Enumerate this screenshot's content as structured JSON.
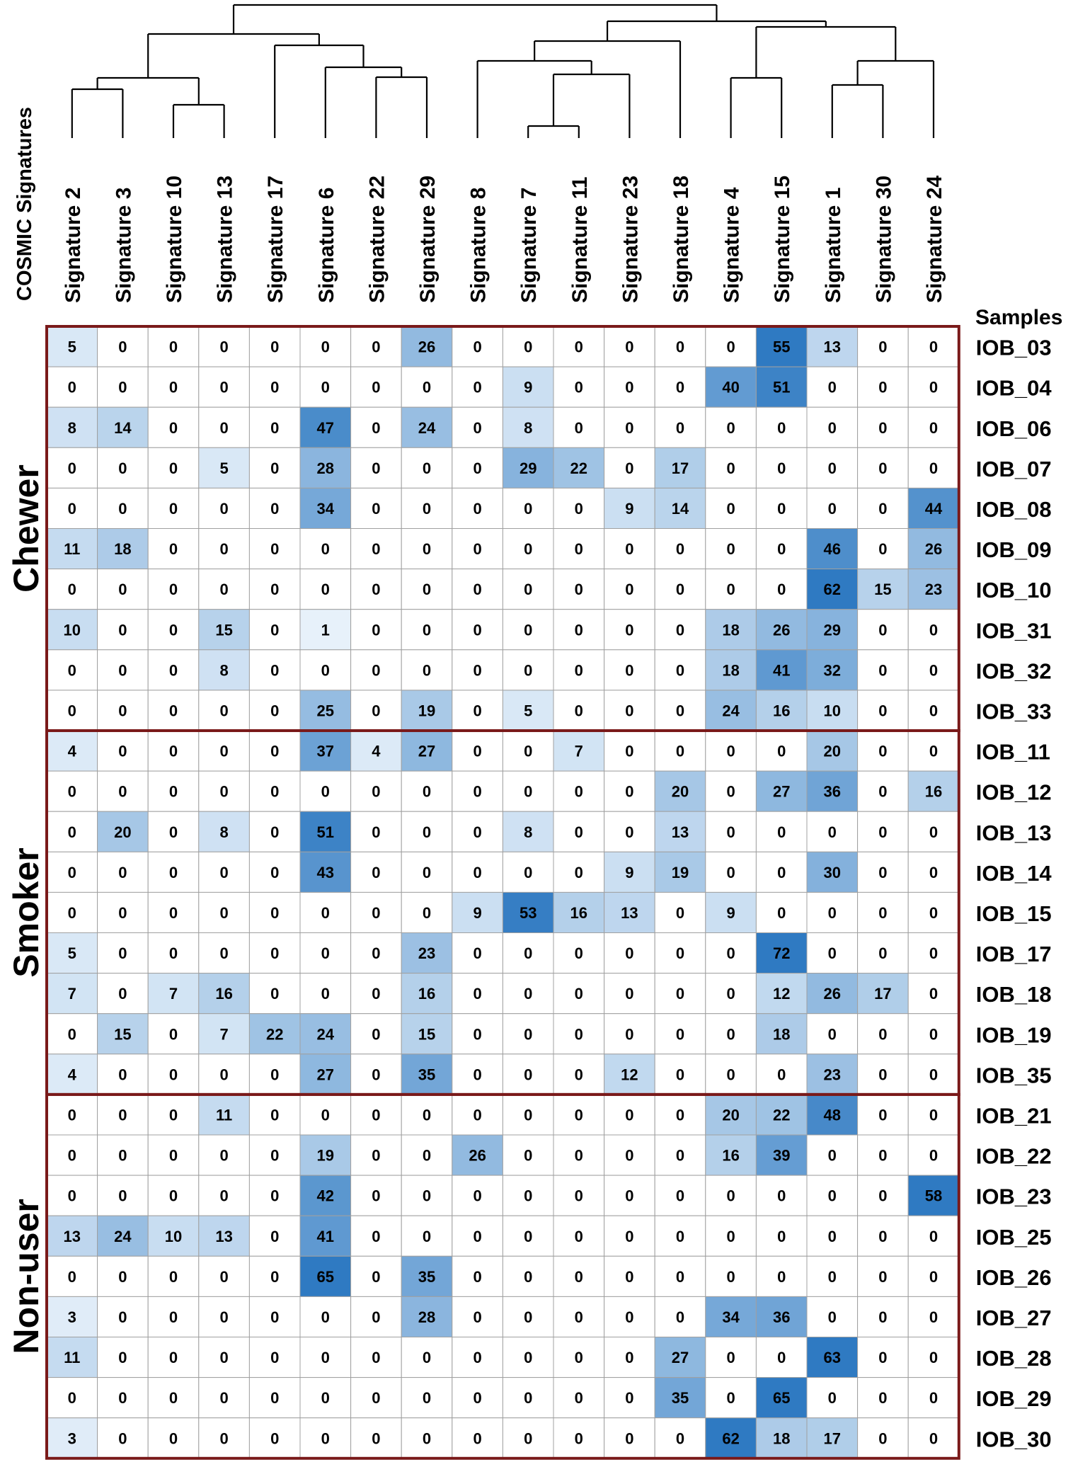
{
  "chart_data": {
    "type": "heatmap",
    "x_axis_title": "COSMIC Signatures",
    "samples_header": "Samples",
    "columns": [
      "Signature 2",
      "Signature 3",
      "Signature 10",
      "Signature 13",
      "Signature 17",
      "Signature 6",
      "Signature 22",
      "Signature 29",
      "Signature 8",
      "Signature 7",
      "Signature 11",
      "Signature 23",
      "Signature 18",
      "Signature 4",
      "Signature 15",
      "Signature 1",
      "Signature 30",
      "Signature 24"
    ],
    "groups": [
      {
        "name": "Chewer",
        "rows": [
          {
            "sample": "IOB_03",
            "values": [
              5,
              0,
              0,
              0,
              0,
              0,
              0,
              26,
              0,
              0,
              0,
              0,
              0,
              0,
              55,
              13,
              0,
              0
            ]
          },
          {
            "sample": "IOB_04",
            "values": [
              0,
              0,
              0,
              0,
              0,
              0,
              0,
              0,
              0,
              9,
              0,
              0,
              0,
              40,
              51,
              0,
              0,
              0
            ]
          },
          {
            "sample": "IOB_06",
            "values": [
              8,
              14,
              0,
              0,
              0,
              47,
              0,
              24,
              0,
              8,
              0,
              0,
              0,
              0,
              0,
              0,
              0,
              0
            ]
          },
          {
            "sample": "IOB_07",
            "values": [
              0,
              0,
              0,
              5,
              0,
              28,
              0,
              0,
              0,
              29,
              22,
              0,
              17,
              0,
              0,
              0,
              0,
              0
            ]
          },
          {
            "sample": "IOB_08",
            "values": [
              0,
              0,
              0,
              0,
              0,
              34,
              0,
              0,
              0,
              0,
              0,
              9,
              14,
              0,
              0,
              0,
              0,
              44
            ]
          },
          {
            "sample": "IOB_09",
            "values": [
              11,
              18,
              0,
              0,
              0,
              0,
              0,
              0,
              0,
              0,
              0,
              0,
              0,
              0,
              0,
              46,
              0,
              26
            ]
          },
          {
            "sample": "IOB_10",
            "values": [
              0,
              0,
              0,
              0,
              0,
              0,
              0,
              0,
              0,
              0,
              0,
              0,
              0,
              0,
              0,
              62,
              15,
              23
            ]
          },
          {
            "sample": "IOB_31",
            "values": [
              10,
              0,
              0,
              15,
              0,
              1,
              0,
              0,
              0,
              0,
              0,
              0,
              0,
              18,
              26,
              29,
              0,
              0
            ]
          },
          {
            "sample": "IOB_32",
            "values": [
              0,
              0,
              0,
              8,
              0,
              0,
              0,
              0,
              0,
              0,
              0,
              0,
              0,
              18,
              41,
              32,
              0,
              0
            ]
          },
          {
            "sample": "IOB_33",
            "values": [
              0,
              0,
              0,
              0,
              0,
              25,
              0,
              19,
              0,
              5,
              0,
              0,
              0,
              24,
              16,
              10,
              0,
              0
            ]
          }
        ]
      },
      {
        "name": "Smoker",
        "rows": [
          {
            "sample": "IOB_11",
            "values": [
              4,
              0,
              0,
              0,
              0,
              37,
              4,
              27,
              0,
              0,
              7,
              0,
              0,
              0,
              0,
              20,
              0,
              0
            ]
          },
          {
            "sample": "IOB_12",
            "values": [
              0,
              0,
              0,
              0,
              0,
              0,
              0,
              0,
              0,
              0,
              0,
              0,
              20,
              0,
              27,
              36,
              0,
              16
            ]
          },
          {
            "sample": "IOB_13",
            "values": [
              0,
              20,
              0,
              8,
              0,
              51,
              0,
              0,
              0,
              8,
              0,
              0,
              13,
              0,
              0,
              0,
              0,
              0
            ]
          },
          {
            "sample": "IOB_14",
            "values": [
              0,
              0,
              0,
              0,
              0,
              43,
              0,
              0,
              0,
              0,
              0,
              9,
              19,
              0,
              0,
              30,
              0,
              0
            ]
          },
          {
            "sample": "IOB_15",
            "values": [
              0,
              0,
              0,
              0,
              0,
              0,
              0,
              0,
              9,
              53,
              16,
              13,
              0,
              9,
              0,
              0,
              0,
              0
            ]
          },
          {
            "sample": "IOB_17",
            "values": [
              5,
              0,
              0,
              0,
              0,
              0,
              0,
              23,
              0,
              0,
              0,
              0,
              0,
              0,
              72,
              0,
              0,
              0
            ]
          },
          {
            "sample": "IOB_18",
            "values": [
              7,
              0,
              7,
              16,
              0,
              0,
              0,
              16,
              0,
              0,
              0,
              0,
              0,
              0,
              12,
              26,
              17,
              0
            ]
          },
          {
            "sample": "IOB_19",
            "values": [
              0,
              15,
              0,
              7,
              22,
              24,
              0,
              15,
              0,
              0,
              0,
              0,
              0,
              0,
              18,
              0,
              0,
              0
            ]
          },
          {
            "sample": "IOB_35",
            "values": [
              4,
              0,
              0,
              0,
              0,
              27,
              0,
              35,
              0,
              0,
              0,
              12,
              0,
              0,
              0,
              23,
              0,
              0
            ]
          }
        ]
      },
      {
        "name": "Non-user",
        "rows": [
          {
            "sample": "IOB_21",
            "values": [
              0,
              0,
              0,
              11,
              0,
              0,
              0,
              0,
              0,
              0,
              0,
              0,
              0,
              20,
              22,
              48,
              0,
              0
            ]
          },
          {
            "sample": "IOB_22",
            "values": [
              0,
              0,
              0,
              0,
              0,
              19,
              0,
              0,
              26,
              0,
              0,
              0,
              0,
              16,
              39,
              0,
              0,
              0
            ]
          },
          {
            "sample": "IOB_23",
            "values": [
              0,
              0,
              0,
              0,
              0,
              42,
              0,
              0,
              0,
              0,
              0,
              0,
              0,
              0,
              0,
              0,
              0,
              58
            ]
          },
          {
            "sample": "IOB_25",
            "values": [
              13,
              24,
              10,
              13,
              0,
              41,
              0,
              0,
              0,
              0,
              0,
              0,
              0,
              0,
              0,
              0,
              0,
              0
            ]
          },
          {
            "sample": "IOB_26",
            "values": [
              0,
              0,
              0,
              0,
              0,
              65,
              0,
              35,
              0,
              0,
              0,
              0,
              0,
              0,
              0,
              0,
              0,
              0
            ]
          },
          {
            "sample": "IOB_27",
            "values": [
              3,
              0,
              0,
              0,
              0,
              0,
              0,
              28,
              0,
              0,
              0,
              0,
              0,
              34,
              36,
              0,
              0,
              0
            ]
          },
          {
            "sample": "IOB_28",
            "values": [
              11,
              0,
              0,
              0,
              0,
              0,
              0,
              0,
              0,
              0,
              0,
              0,
              27,
              0,
              0,
              63,
              0,
              0
            ]
          },
          {
            "sample": "IOB_29",
            "values": [
              0,
              0,
              0,
              0,
              0,
              0,
              0,
              0,
              0,
              0,
              0,
              0,
              35,
              0,
              65,
              0,
              0,
              0
            ]
          },
          {
            "sample": "IOB_30",
            "values": [
              3,
              0,
              0,
              0,
              0,
              0,
              0,
              0,
              0,
              0,
              0,
              0,
              0,
              62,
              18,
              17,
              0,
              0
            ]
          }
        ]
      }
    ],
    "colors": {
      "cell_zero": "#ffffff",
      "cell_low": "#eaf3fb",
      "cell_high": "#2f7ac2",
      "grid": "#a0a0a0",
      "group_border": "#7a1a1a",
      "dendrogram": "#000000",
      "text": "#000000"
    }
  }
}
